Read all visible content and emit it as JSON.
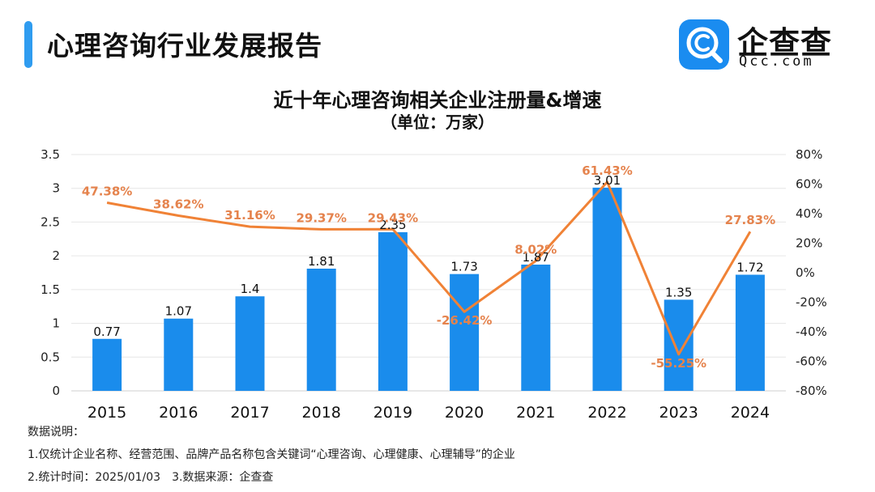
{
  "header": {
    "title": "心理咨询行业发展报告",
    "accent_color": "#2f9cf0"
  },
  "logo": {
    "name_cn": "企查查",
    "name_en": "Qcc.com",
    "icon": "qcc-logo-icon",
    "brand_color": "#1a8cf0"
  },
  "chart_data": {
    "type": "bar",
    "title": "近十年心理咨询相关企业注册量&增速",
    "subtitle": "（单位：万家）",
    "categories": [
      "2015",
      "2016",
      "2017",
      "2018",
      "2019",
      "2020",
      "2021",
      "2022",
      "2023",
      "2024"
    ],
    "series": [
      {
        "type": "bar",
        "axis": "left",
        "color": "#1a8cec",
        "values": [
          0.77,
          1.07,
          1.4,
          1.81,
          2.35,
          1.73,
          1.87,
          3.01,
          1.35,
          1.72
        ],
        "labels": [
          "0.77",
          "1.07",
          "1.4",
          "1.81",
          "2.35",
          "1.73",
          "1.87",
          "3.01",
          "1.35",
          "1.72"
        ]
      },
      {
        "type": "line",
        "axis": "right",
        "color": "#f08236",
        "values": [
          47.38,
          38.62,
          31.16,
          29.37,
          29.43,
          -26.42,
          8.02,
          61.43,
          -55.25,
          27.83
        ],
        "labels": [
          "47.38%",
          "38.62%",
          "31.16%",
          "29.37%",
          "29.43%",
          "-26.42%",
          "8.02%",
          "61.43%",
          "-55.25%",
          "27.83%"
        ]
      }
    ],
    "y_left": {
      "range": [
        0,
        3.5
      ],
      "ticks": [
        0,
        0.5,
        1,
        1.5,
        2,
        2.5,
        3,
        3.5
      ],
      "tick_labels": [
        "0",
        "0.5",
        "1",
        "1.5",
        "2",
        "2.5",
        "3",
        "3.5"
      ]
    },
    "y_right": {
      "range": [
        -80,
        80
      ],
      "ticks": [
        -80,
        -60,
        -40,
        -20,
        0,
        20,
        40,
        60,
        80
      ],
      "tick_labels": [
        "-80%",
        "-60%",
        "-40%",
        "-20%",
        "0%",
        "20%",
        "40%",
        "60%",
        "80%"
      ]
    },
    "grid": true,
    "legend": "none"
  },
  "notes": {
    "heading": "数据说明：",
    "line1": "1.仅统计企业名称、经营范围、品牌产品名称包含关键词“心理咨询、心理健康、心理辅导”的企业",
    "line2a": "2.统计时间：2025/01/03",
    "line2b": "3.数据来源：企查查"
  }
}
